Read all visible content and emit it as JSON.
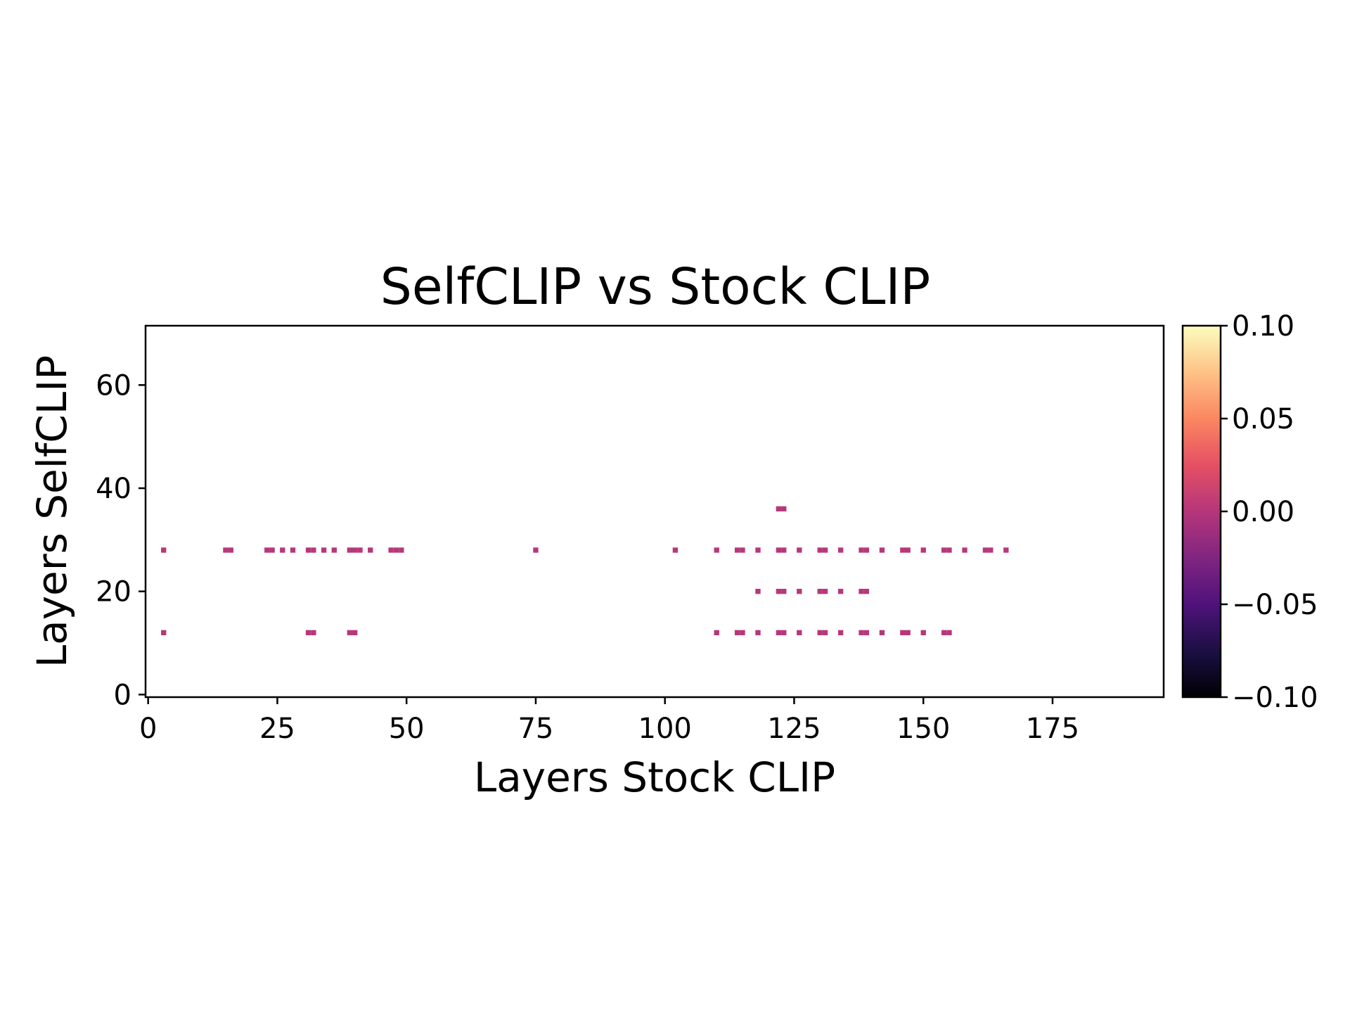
{
  "chart_data": {
    "type": "heatmap",
    "title": "SelfCLIP vs Stock CLIP",
    "xlabel": "Layers Stock CLIP",
    "ylabel": "Layers SelfCLIP",
    "xlim": [
      -0.5,
      196.5
    ],
    "ylim": [
      -0.5,
      71.5
    ],
    "xticks": [
      0,
      25,
      50,
      75,
      100,
      125,
      150,
      175
    ],
    "yticks": [
      0,
      20,
      40,
      60
    ],
    "colormap": "magma",
    "colorbar": {
      "range": [
        -0.1,
        0.1
      ],
      "ticks": [
        0.1,
        0.05,
        0.0,
        -0.05,
        -0.1
      ],
      "tick_labels": [
        "0.10",
        "0.05",
        "0.00",
        "−0.05",
        "−0.10"
      ]
    },
    "cell_value": 0.0,
    "cell_color": "#b73779",
    "background_color": "#ffffff",
    "cells": [
      {
        "y": 36,
        "x": [
          122,
          123
        ]
      },
      {
        "y": 28,
        "x": [
          3,
          15,
          16,
          23,
          24,
          26,
          28,
          31,
          32,
          34,
          36,
          39,
          40,
          41,
          43,
          47,
          48,
          49,
          75,
          102,
          110,
          114,
          115,
          118,
          122,
          123,
          126,
          130,
          131,
          134,
          138,
          139,
          142,
          146,
          147,
          150,
          154,
          155,
          158,
          162,
          163,
          166
        ]
      },
      {
        "y": 20,
        "x": [
          118,
          122,
          123,
          126,
          130,
          131,
          134,
          138,
          139
        ]
      },
      {
        "y": 12,
        "x": [
          3,
          31,
          32,
          39,
          40,
          110,
          114,
          115,
          118,
          122,
          123,
          126,
          130,
          131,
          134,
          138,
          139,
          142,
          146,
          147,
          150,
          154,
          155
        ]
      }
    ]
  }
}
